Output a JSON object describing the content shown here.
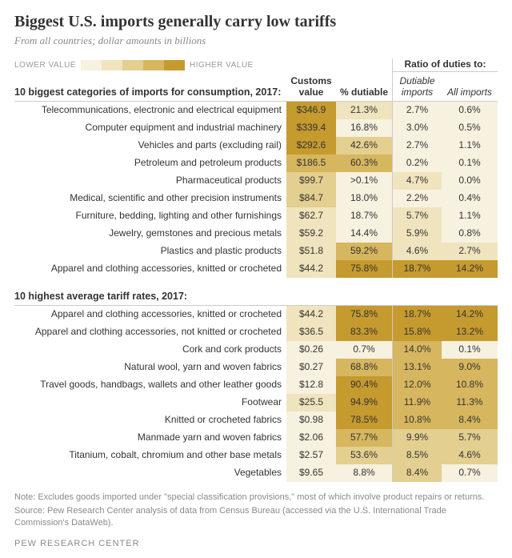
{
  "title": "Biggest U.S. imports generally carry low tariffs",
  "subtitle": "From all countries; dollar amounts in billions",
  "legend": {
    "low_label": "LOWER VALUE",
    "high_label": "HIGHER VALUE",
    "colors": [
      "#f7f1df",
      "#efe4bd",
      "#e3cf8f",
      "#d6b65e",
      "#c59a2e"
    ]
  },
  "columns": {
    "customs": "Customs value",
    "dutiable": "% dutiable",
    "ratio_header": "Ratio of duties to:",
    "ratio1": "Dutiable imports",
    "ratio2": "All imports"
  },
  "section1": {
    "title": "10 biggest categories of imports for consumption, 2017:",
    "rows": [
      {
        "label": "Telecommunications, electronic and electrical equipment",
        "customs": "$346.9",
        "c_customs": "#c59a2e",
        "dutiable": "21.3%",
        "c_dutiable": "#efe4bd",
        "r1": "2.7%",
        "c_r1": "#f7f1df",
        "r2": "0.6%",
        "c_r2": "#f7f1df"
      },
      {
        "label": "Computer equipment and industrial machinery",
        "customs": "$339.4",
        "c_customs": "#c59a2e",
        "dutiable": "16.8%",
        "c_dutiable": "#f7f1df",
        "r1": "3.0%",
        "c_r1": "#f7f1df",
        "r2": "0.5%",
        "c_r2": "#f7f1df"
      },
      {
        "label": "Vehicles and parts (excluding rail)",
        "customs": "$292.6",
        "c_customs": "#c59a2e",
        "dutiable": "42.6%",
        "c_dutiable": "#e3cf8f",
        "r1": "2.7%",
        "c_r1": "#f7f1df",
        "r2": "1.1%",
        "c_r2": "#f7f1df"
      },
      {
        "label": "Petroleum and petroleum products",
        "customs": "$186.5",
        "c_customs": "#d6b65e",
        "dutiable": "60.3%",
        "c_dutiable": "#d6b65e",
        "r1": "0.2%",
        "c_r1": "#f7f1df",
        "r2": "0.1%",
        "c_r2": "#f7f1df"
      },
      {
        "label": "Pharmaceutical products",
        "customs": "$99.7",
        "c_customs": "#e3cf8f",
        "dutiable": ">0.1%",
        "c_dutiable": "#f7f1df",
        "r1": "4.7%",
        "c_r1": "#efe4bd",
        "r2": "0.0%",
        "c_r2": "#f7f1df"
      },
      {
        "label": "Medical, scientific and other precision instruments",
        "customs": "$84.7",
        "c_customs": "#e3cf8f",
        "dutiable": "18.0%",
        "c_dutiable": "#f7f1df",
        "r1": "2.2%",
        "c_r1": "#f7f1df",
        "r2": "0.4%",
        "c_r2": "#f7f1df"
      },
      {
        "label": "Furniture, bedding, lighting and other furnishings",
        "customs": "$62.7",
        "c_customs": "#efe4bd",
        "dutiable": "18.7%",
        "c_dutiable": "#f7f1df",
        "r1": "5.7%",
        "c_r1": "#efe4bd",
        "r2": "1.1%",
        "c_r2": "#f7f1df"
      },
      {
        "label": "Jewelry, gemstones and precious metals",
        "customs": "$59.2",
        "c_customs": "#efe4bd",
        "dutiable": "14.4%",
        "c_dutiable": "#f7f1df",
        "r1": "5.9%",
        "c_r1": "#efe4bd",
        "r2": "0.8%",
        "c_r2": "#f7f1df"
      },
      {
        "label": "Plastics and plastic products",
        "customs": "$51.8",
        "c_customs": "#efe4bd",
        "dutiable": "59.2%",
        "c_dutiable": "#d6b65e",
        "r1": "4.6%",
        "c_r1": "#efe4bd",
        "r2": "2.7%",
        "c_r2": "#efe4bd"
      },
      {
        "label": "Apparel and clothing accessories, knitted or crocheted",
        "customs": "$44.2",
        "c_customs": "#efe4bd",
        "dutiable": "75.8%",
        "c_dutiable": "#c59a2e",
        "r1": "18.7%",
        "c_r1": "#c59a2e",
        "r2": "14.2%",
        "c_r2": "#c59a2e"
      }
    ]
  },
  "section2": {
    "title": "10 highest average tariff rates, 2017:",
    "rows": [
      {
        "label": "Apparel and clothing accessories, knitted or crocheted",
        "customs": "$44.2",
        "c_customs": "#efe4bd",
        "dutiable": "75.8%",
        "c_dutiable": "#c59a2e",
        "r1": "18.7%",
        "c_r1": "#c59a2e",
        "r2": "14.2%",
        "c_r2": "#c59a2e"
      },
      {
        "label": "Apparel and clothing accessories, not knitted or crocheted",
        "customs": "$36.5",
        "c_customs": "#efe4bd",
        "dutiable": "83.3%",
        "c_dutiable": "#c59a2e",
        "r1": "15.8%",
        "c_r1": "#c59a2e",
        "r2": "13.2%",
        "c_r2": "#c59a2e"
      },
      {
        "label": "Cork and cork products",
        "customs": "$0.26",
        "c_customs": "#f7f1df",
        "dutiable": "0.7%",
        "c_dutiable": "#f7f1df",
        "r1": "14.0%",
        "c_r1": "#d6b65e",
        "r2": "0.1%",
        "c_r2": "#f7f1df"
      },
      {
        "label": "Natural wool, yarn and woven fabrics",
        "customs": "$0.27",
        "c_customs": "#f7f1df",
        "dutiable": "68.8%",
        "c_dutiable": "#d6b65e",
        "r1": "13.1%",
        "c_r1": "#d6b65e",
        "r2": "9.0%",
        "c_r2": "#d6b65e"
      },
      {
        "label": "Travel goods, handbags, wallets and other leather goods",
        "customs": "$12.8",
        "c_customs": "#f7f1df",
        "dutiable": "90.4%",
        "c_dutiable": "#c59a2e",
        "r1": "12.0%",
        "c_r1": "#d6b65e",
        "r2": "10.8%",
        "c_r2": "#d6b65e"
      },
      {
        "label": "Footwear",
        "customs": "$25.5",
        "c_customs": "#efe4bd",
        "dutiable": "94.9%",
        "c_dutiable": "#c59a2e",
        "r1": "11.9%",
        "c_r1": "#d6b65e",
        "r2": "11.3%",
        "c_r2": "#d6b65e"
      },
      {
        "label": "Knitted or crocheted fabrics",
        "customs": "$0.98",
        "c_customs": "#f7f1df",
        "dutiable": "78.5%",
        "c_dutiable": "#c59a2e",
        "r1": "10.8%",
        "c_r1": "#d6b65e",
        "r2": "8.4%",
        "c_r2": "#d6b65e"
      },
      {
        "label": "Manmade yarn and woven fabrics",
        "customs": "$2.06",
        "c_customs": "#f7f1df",
        "dutiable": "57.7%",
        "c_dutiable": "#d6b65e",
        "r1": "9.9%",
        "c_r1": "#e3cf8f",
        "r2": "5.7%",
        "c_r2": "#e3cf8f"
      },
      {
        "label": "Titanium, cobalt, chromium and other base metals",
        "customs": "$2.57",
        "c_customs": "#f7f1df",
        "dutiable": "53.6%",
        "c_dutiable": "#e3cf8f",
        "r1": "8.5%",
        "c_r1": "#e3cf8f",
        "r2": "4.6%",
        "c_r2": "#e3cf8f"
      },
      {
        "label": "Vegetables",
        "customs": "$9.65",
        "c_customs": "#f7f1df",
        "dutiable": "8.8%",
        "c_dutiable": "#f7f1df",
        "r1": "8.4%",
        "c_r1": "#e3cf8f",
        "r2": "0.7%",
        "c_r2": "#f7f1df"
      }
    ]
  },
  "note": "Note: Excludes goods imported under \"special classification provisions,\" most of which involve product repairs or returns.",
  "source": "Source: Pew Research Center analysis of data from Census Bureau (accessed via the U.S. International Trade Commission's DataWeb).",
  "brand": "PEW RESEARCH CENTER"
}
